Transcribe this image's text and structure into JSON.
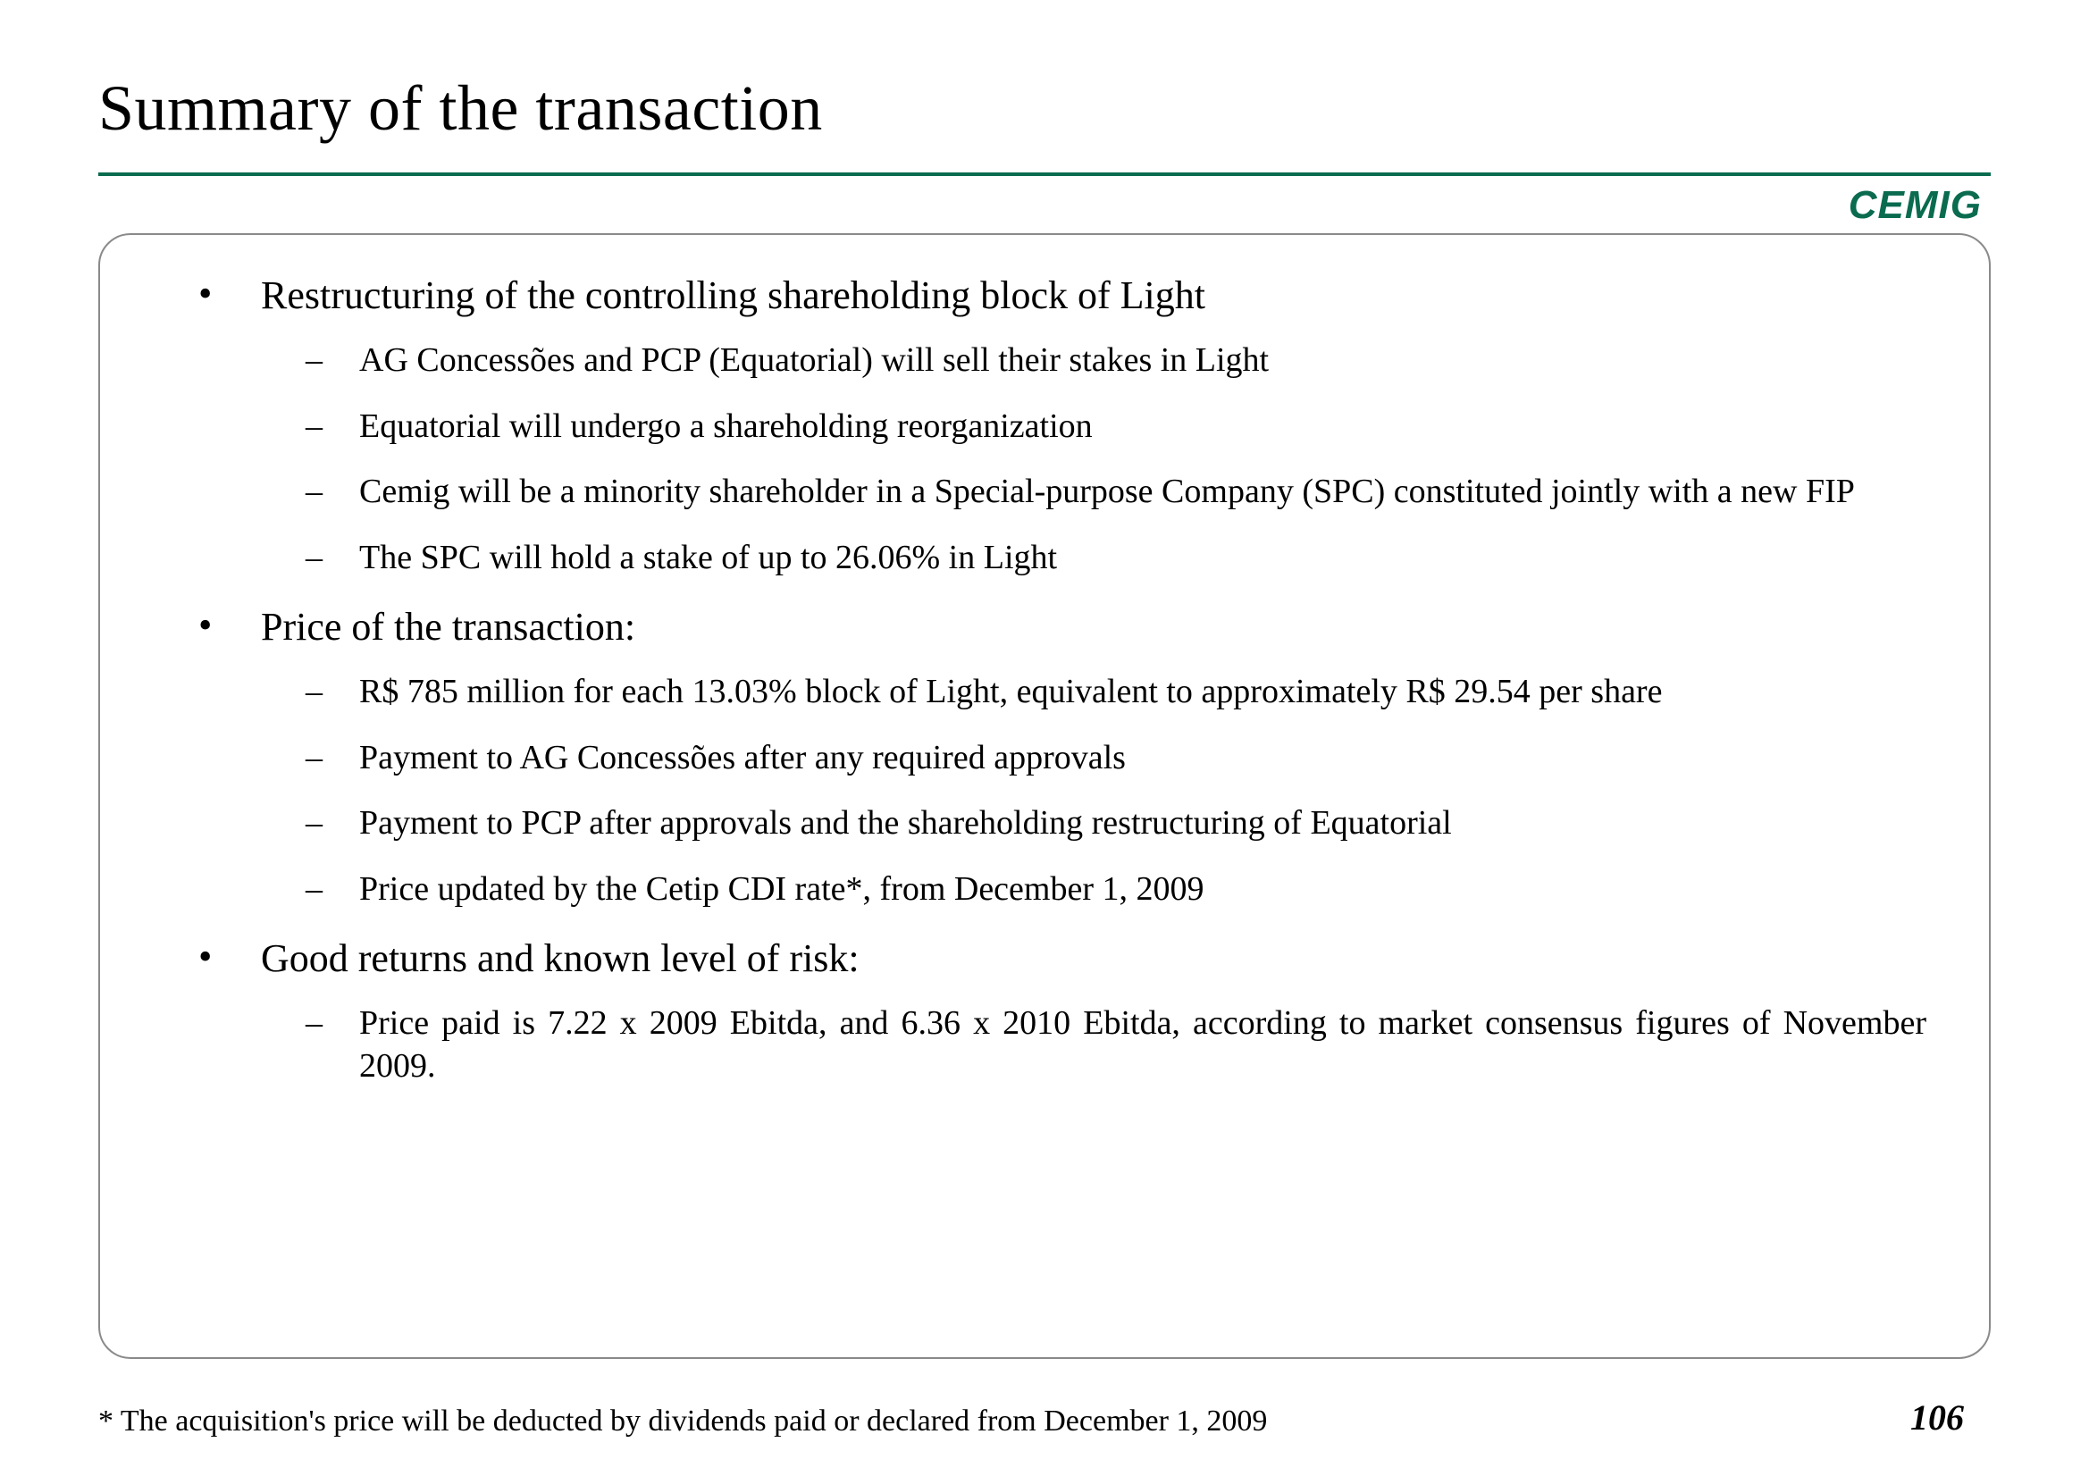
{
  "title": "Summary of the transaction",
  "logo_text": "CEMIG",
  "colors": {
    "accent": "#0a6b4f",
    "border": "#8a8a8a",
    "text": "#000000",
    "background": "#ffffff"
  },
  "bullets": [
    {
      "text": "Restructuring of the controlling shareholding block of Light",
      "sub": [
        "AG Concessões and PCP (Equatorial) will sell their stakes in Light",
        "Equatorial will undergo a shareholding reorganization",
        "Cemig will be a minority shareholder in a Special-purpose Company (SPC) constituted jointly with a new FIP",
        "The SPC will hold a stake of up to 26.06% in Light"
      ]
    },
    {
      "text": "Price of the transaction:",
      "sub": [
        "R$ 785 million for each 13.03% block of Light, equivalent to approximately R$ 29.54 per share",
        "Payment to AG Concessões after any required approvals",
        "Payment to PCP after approvals and the shareholding restructuring of Equatorial",
        "Price updated by the Cetip CDI rate*, from December 1, 2009"
      ]
    },
    {
      "text": "Good returns and known level of risk:",
      "sub": [
        "Price paid is 7.22 x 2009 Ebitda, and 6.36 x  2010 Ebitda, according to market consensus figures of November 2009."
      ]
    }
  ],
  "footnote": "* The acquisition's price will be deducted by dividends paid or declared from December 1, 2009",
  "page_number": "106"
}
